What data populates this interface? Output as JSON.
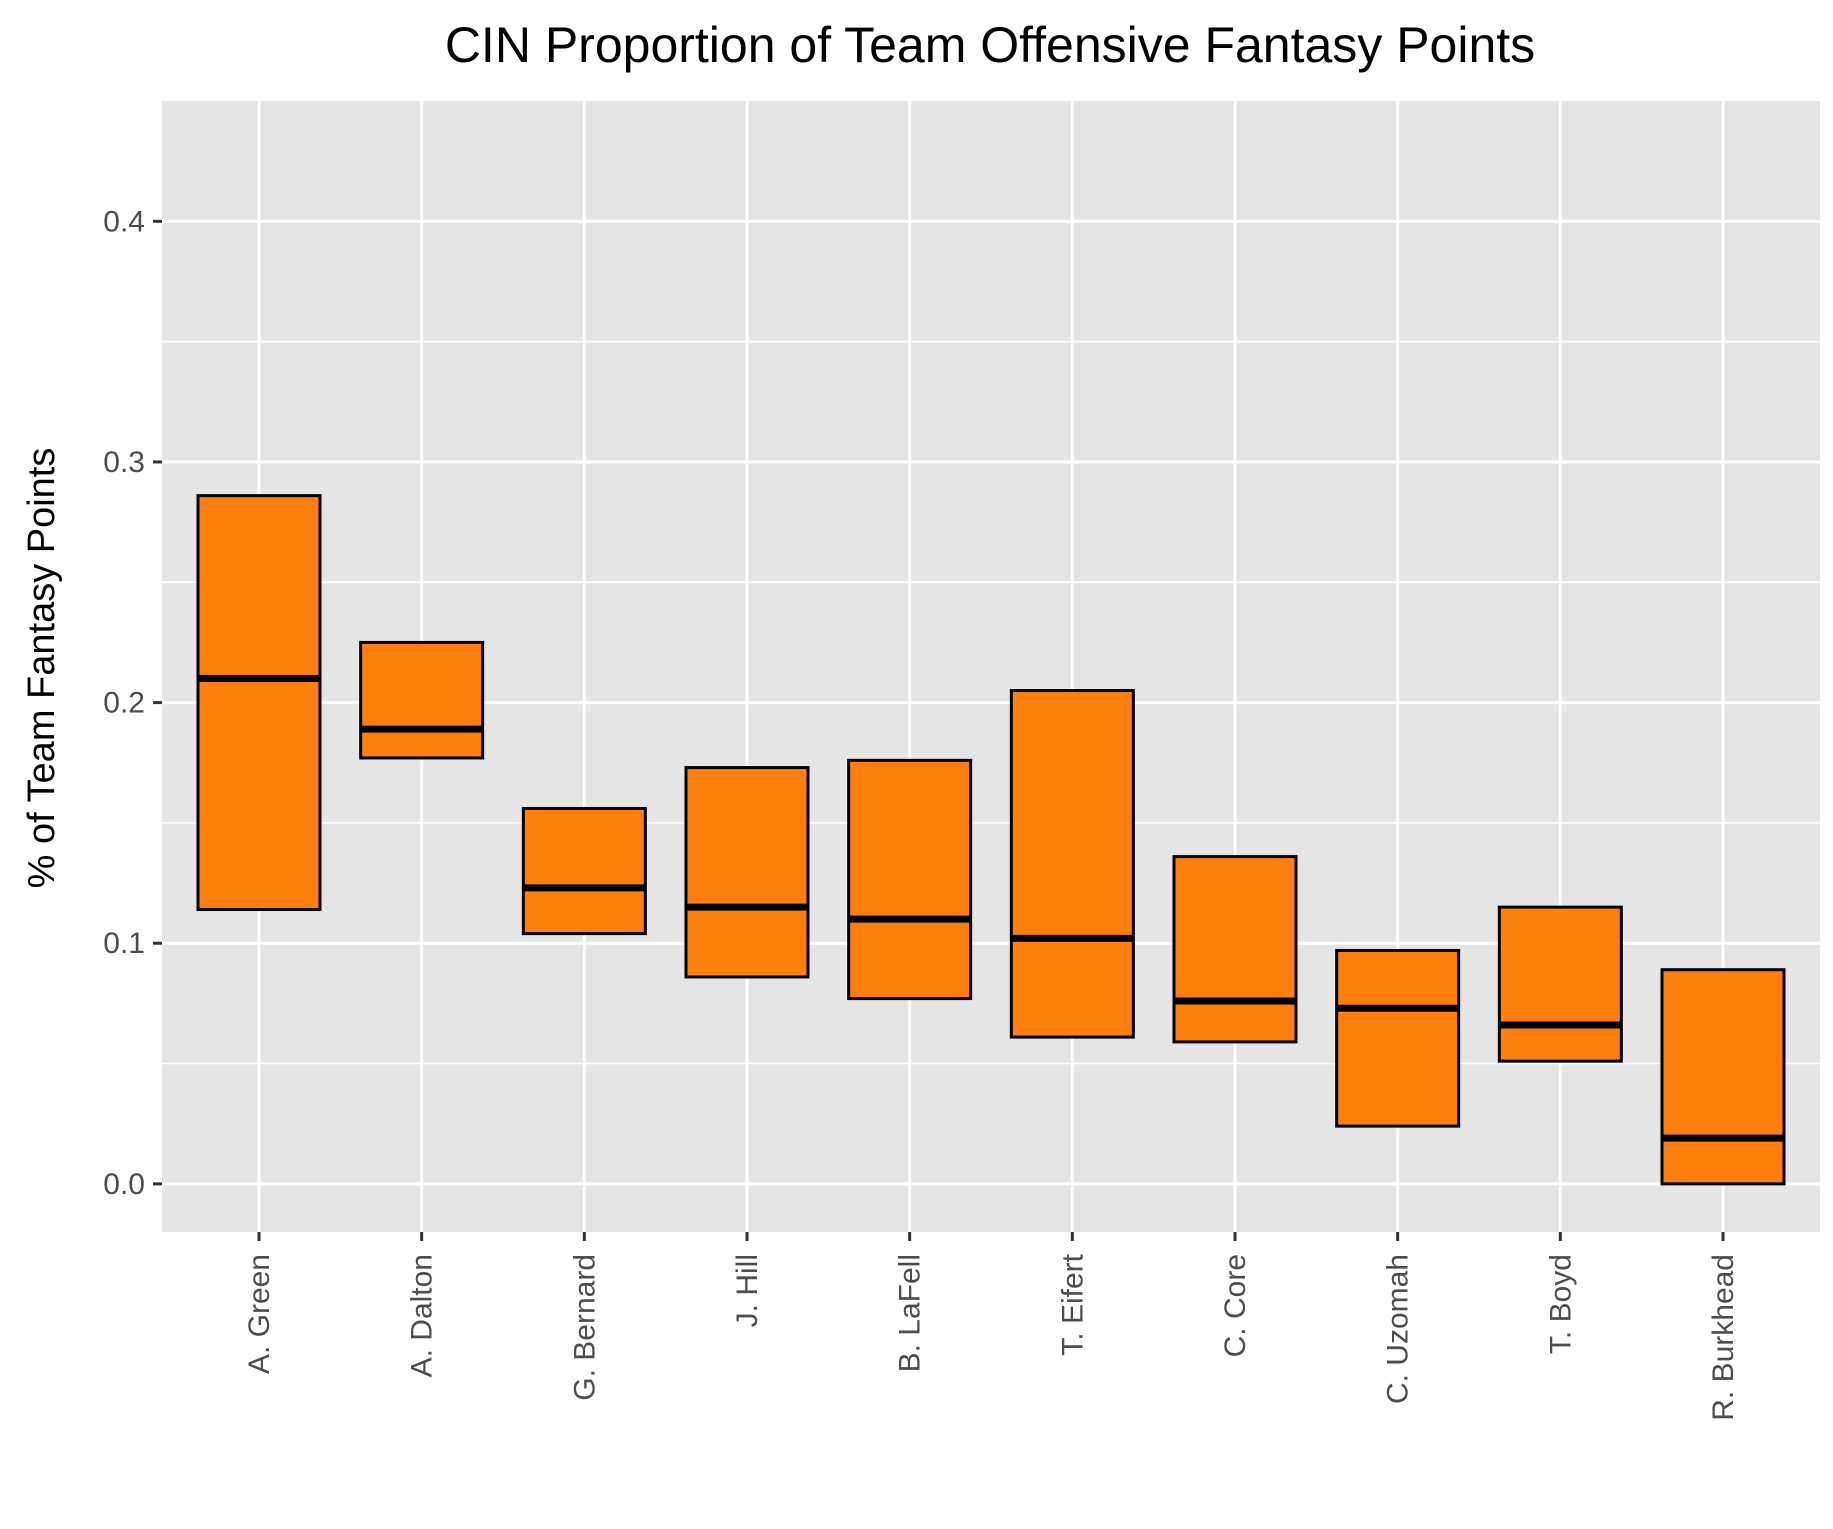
{
  "chart_data": {
    "type": "boxplot",
    "title": "CIN Proportion of Team Offensive Fantasy Points",
    "xlabel": "",
    "ylabel": "% of Team Fantasy Points",
    "ylim": [
      -0.02,
      0.45
    ],
    "yticks": [
      "0.0",
      "0.1",
      "0.2",
      "0.3",
      "0.4"
    ],
    "ytick_values": [
      0.0,
      0.1,
      0.2,
      0.3,
      0.4
    ],
    "grid": true,
    "legend": "none",
    "colors": {
      "fill": "#ff7f0e",
      "stroke": "#000000",
      "panel": "#e5e5e5",
      "grid": "#ffffff"
    },
    "categories": [
      "A. Green",
      "A. Dalton",
      "G. Bernard",
      "J. Hill",
      "B. LaFell",
      "T. Eifert",
      "C. Core",
      "C. Uzomah",
      "T. Boyd",
      "R. Burkhead"
    ],
    "boxes": [
      {
        "q1": 0.114,
        "median": 0.21,
        "q3": 0.286
      },
      {
        "q1": 0.177,
        "median": 0.189,
        "q3": 0.225
      },
      {
        "q1": 0.104,
        "median": 0.123,
        "q3": 0.156
      },
      {
        "q1": 0.086,
        "median": 0.115,
        "q3": 0.173
      },
      {
        "q1": 0.077,
        "median": 0.11,
        "q3": 0.176
      },
      {
        "q1": 0.061,
        "median": 0.102,
        "q3": 0.205
      },
      {
        "q1": 0.059,
        "median": 0.076,
        "q3": 0.136
      },
      {
        "q1": 0.024,
        "median": 0.073,
        "q3": 0.097
      },
      {
        "q1": 0.051,
        "median": 0.066,
        "q3": 0.115
      },
      {
        "q1": 0.0,
        "median": 0.019,
        "q3": 0.089
      }
    ]
  }
}
